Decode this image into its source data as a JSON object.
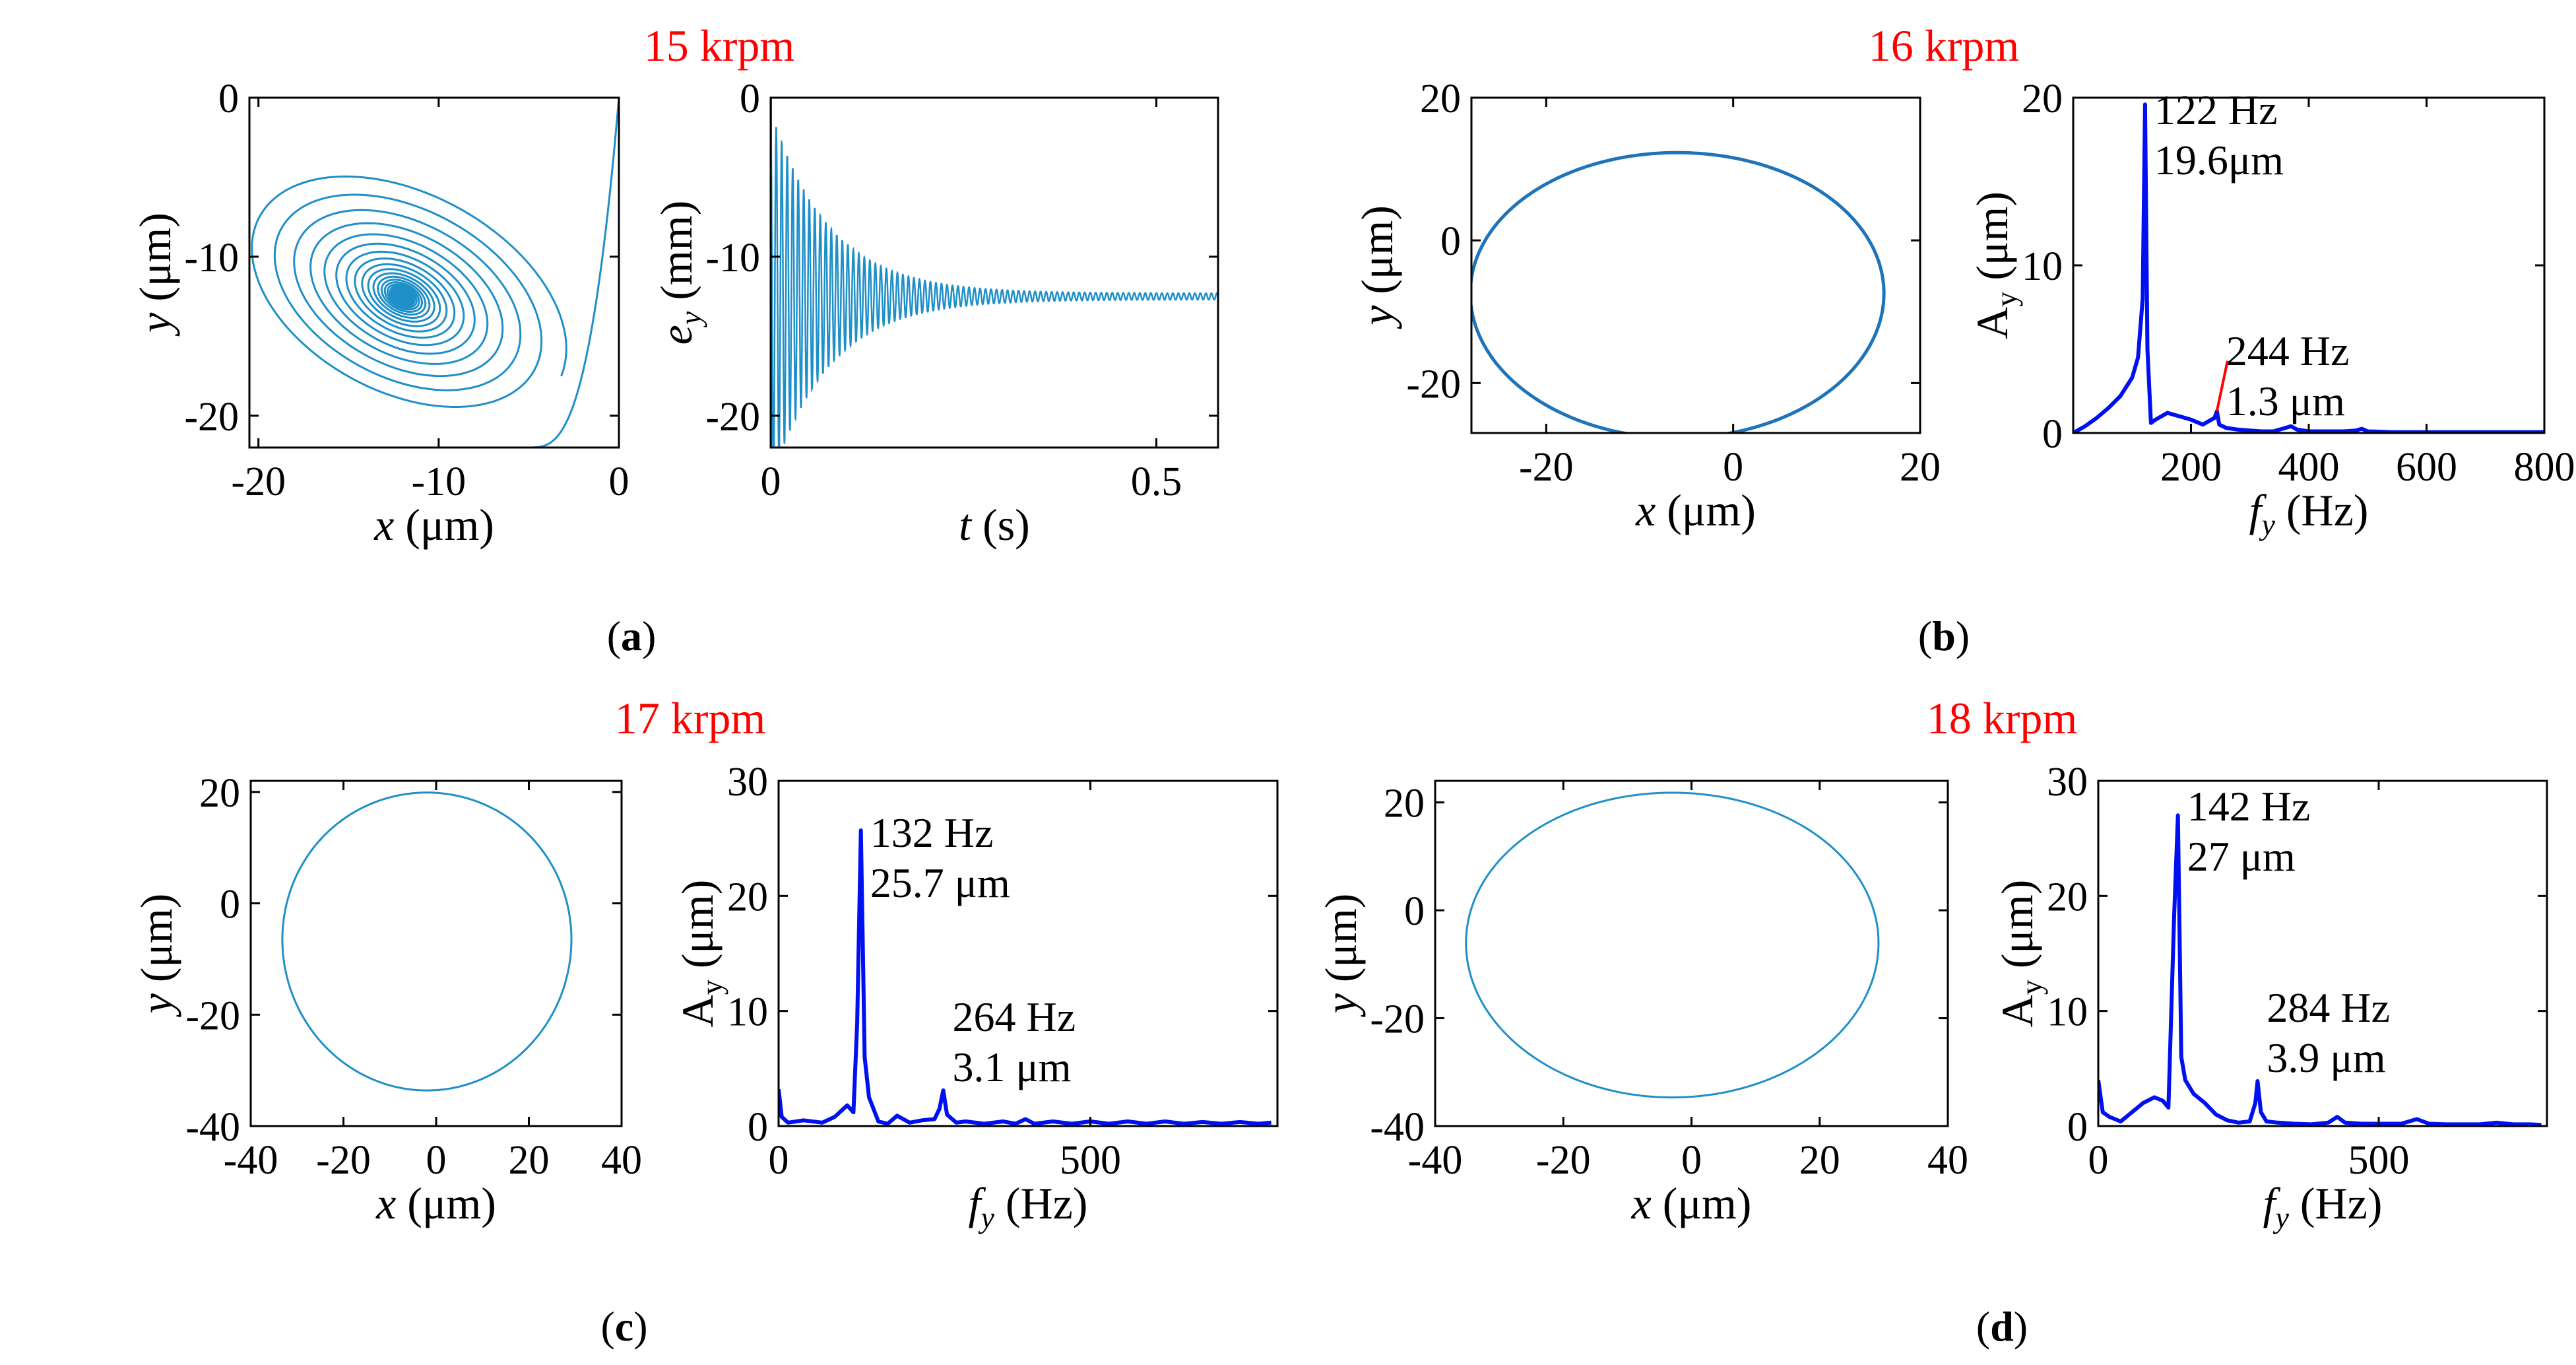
{
  "figure": {
    "panels": [
      {
        "id": "a",
        "label": "(a)",
        "title": "15 krpm"
      },
      {
        "id": "b",
        "label": "(b)",
        "title": "16 krpm"
      },
      {
        "id": "c",
        "label": "(c)",
        "title": "17 krpm"
      },
      {
        "id": "d",
        "label": "(d)",
        "title": "18 krpm"
      }
    ]
  },
  "chart_data": [
    {
      "id": "a-orbit",
      "type": "line",
      "panel": "a",
      "description_series": "converging spiral orbit from (0,0) to center near (-12,-12.5)",
      "start": [
        0,
        0
      ],
      "center": [
        -12,
        -12.5
      ],
      "xlabel": {
        "italic": "x",
        "rest": " (μm)"
      },
      "ylabel": {
        "italic": "y",
        "rest": " (μm)"
      },
      "xlim": [
        -20.5,
        0
      ],
      "ylim": [
        -22,
        0
      ],
      "xticks": [
        -20,
        -10,
        0
      ],
      "yticks": [
        -20,
        -10,
        0
      ],
      "color": "#1f8fc8"
    },
    {
      "id": "a-time",
      "type": "line",
      "panel": "a",
      "description_series": "decaying oscillation of e_y from 0/-22 envelope to steady -12.5",
      "steady_value": -12.5,
      "envelope_start": [
        0,
        -22
      ],
      "xlabel": {
        "italic": "t",
        "rest": " (s)"
      },
      "ylabel": {
        "italic": "e",
        "sub": "y",
        "rest": " (mm)"
      },
      "xlim": [
        0,
        0.58
      ],
      "ylim": [
        -22,
        0
      ],
      "xticks": [
        0,
        0.5
      ],
      "yticks": [
        -20,
        -10,
        0
      ],
      "xticklabels": [
        "0",
        "0.5"
      ],
      "color": "#1f8fc8"
    },
    {
      "id": "b-orbit",
      "type": "line",
      "panel": "b",
      "orbit": {
        "x_range": [
          -28,
          16
        ],
        "y_range": [
          -26.5,
          13.5
        ]
      },
      "xlabel": {
        "italic": "x",
        "rest": " (μm)"
      },
      "ylabel": {
        "italic": "y",
        "rest": " (μm)"
      },
      "xlim": [
        -28,
        20
      ],
      "ylim": [
        -27,
        20
      ],
      "xticks": [
        -20,
        0,
        20
      ],
      "yticks": [
        -20,
        0,
        20
      ],
      "color": "#1f73b8"
    },
    {
      "id": "b-spectrum",
      "type": "line",
      "panel": "b",
      "peaks": [
        {
          "f": 122,
          "A": 19.6
        },
        {
          "f": 244,
          "A": 1.3
        }
      ],
      "x": [
        0,
        20,
        40,
        60,
        80,
        100,
        110,
        118,
        122,
        126,
        132,
        140,
        160,
        180,
        200,
        220,
        240,
        244,
        248,
        260,
        280,
        300,
        320,
        340,
        360,
        370,
        380,
        400,
        420,
        440,
        460,
        480,
        490,
        500,
        520,
        540,
        560,
        580,
        600,
        650,
        700,
        750,
        800
      ],
      "y": [
        0,
        0.4,
        0.9,
        1.5,
        2.2,
        3.3,
        4.5,
        8,
        19.6,
        5,
        0.6,
        0.8,
        1.2,
        1.0,
        0.8,
        0.5,
        0.9,
        1.3,
        0.5,
        0.3,
        0.2,
        0.15,
        0.1,
        0.1,
        0.3,
        0.4,
        0.2,
        0.1,
        0.1,
        0.1,
        0.1,
        0.15,
        0.25,
        0.1,
        0.08,
        0.05,
        0.05,
        0.05,
        0.05,
        0.05,
        0.05,
        0.05,
        0.05
      ],
      "annotations": [
        {
          "lines": [
            "122 Hz",
            "19.6μm"
          ]
        },
        {
          "lines": [
            "244 Hz",
            "1.3 μm"
          ]
        }
      ],
      "xlabel": {
        "italic": "f",
        "sub": "y",
        "rest": " (Hz)"
      },
      "ylabel": {
        "main": "A",
        "sub": "y",
        "rest": " (μm)"
      },
      "xlim": [
        0,
        800
      ],
      "ylim": [
        0,
        20
      ],
      "xticks": [
        200,
        400,
        600,
        800
      ],
      "yticks": [
        0,
        10,
        20
      ],
      "color": "#0010f0"
    },
    {
      "id": "c-orbit",
      "type": "line",
      "panel": "c",
      "orbit": {
        "x_range": [
          -33,
          29
        ],
        "y_range": [
          -32,
          21.5
        ]
      },
      "xlabel": {
        "italic": "x",
        "rest": " (μm)"
      },
      "ylabel": {
        "italic": "y",
        "rest": " (μm)"
      },
      "xlim": [
        -40,
        40
      ],
      "ylim": [
        -40,
        22
      ],
      "xticks": [
        -40,
        -20,
        0,
        20,
        40
      ],
      "yticks": [
        -40,
        -20,
        0,
        20
      ],
      "color": "#1f8fc8"
    },
    {
      "id": "c-spectrum",
      "type": "line",
      "panel": "c",
      "peaks": [
        {
          "f": 132,
          "A": 25.7
        },
        {
          "f": 264,
          "A": 3.1
        }
      ],
      "x": [
        0,
        5,
        15,
        40,
        70,
        90,
        110,
        120,
        126,
        132,
        138,
        145,
        160,
        175,
        190,
        210,
        230,
        250,
        258,
        264,
        270,
        285,
        300,
        330,
        360,
        380,
        396,
        410,
        440,
        470,
        500,
        530,
        560,
        590,
        620,
        650,
        680,
        710,
        740,
        770,
        790
      ],
      "y": [
        3.2,
        0.8,
        0.3,
        0.5,
        0.3,
        0.8,
        1.8,
        1.2,
        9,
        25.7,
        6,
        2.5,
        0.4,
        0.2,
        0.9,
        0.3,
        0.5,
        0.6,
        1.5,
        3.1,
        1.0,
        0.3,
        0.4,
        0.2,
        0.4,
        0.2,
        0.6,
        0.2,
        0.4,
        0.2,
        0.4,
        0.2,
        0.4,
        0.2,
        0.4,
        0.2,
        0.35,
        0.2,
        0.35,
        0.2,
        0.3
      ],
      "annotations": [
        {
          "lines": [
            "132 Hz",
            "25.7 μm"
          ]
        },
        {
          "lines": [
            "264 Hz",
            "3.1 μm"
          ]
        }
      ],
      "xlabel": {
        "italic": "f",
        "sub": "y",
        "rest": " (Hz)"
      },
      "ylabel": {
        "main": "A",
        "sub": "y",
        "rest": " (μm)"
      },
      "xlim": [
        0,
        800
      ],
      "ylim": [
        0,
        30
      ],
      "xticks": [
        0,
        500
      ],
      "yticks": [
        0,
        10,
        20,
        30
      ],
      "color": "#0010f0"
    },
    {
      "id": "d-orbit",
      "type": "line",
      "panel": "d",
      "orbit": {
        "x_range": [
          -35,
          29
        ],
        "y_range": [
          -33,
          23.5
        ]
      },
      "xlabel": {
        "italic": "x",
        "rest": " (μm)"
      },
      "ylabel": {
        "italic": "y",
        "rest": " (μm)"
      },
      "xlim": [
        -40,
        40
      ],
      "ylim": [
        -40,
        24
      ],
      "xticks": [
        -40,
        -20,
        0,
        20,
        40
      ],
      "yticks": [
        -40,
        -20,
        0,
        20
      ],
      "color": "#1f8fc8"
    },
    {
      "id": "d-spectrum",
      "type": "line",
      "panel": "d",
      "peaks": [
        {
          "f": 142,
          "A": 27
        },
        {
          "f": 284,
          "A": 3.9
        }
      ],
      "x": [
        0,
        8,
        20,
        40,
        60,
        80,
        100,
        115,
        125,
        135,
        142,
        148,
        155,
        170,
        190,
        210,
        230,
        250,
        270,
        280,
        284,
        290,
        300,
        320,
        350,
        380,
        410,
        426,
        440,
        470,
        500,
        540,
        568,
        590,
        620,
        650,
        680,
        710,
        740,
        770,
        790
      ],
      "y": [
        4.0,
        1.2,
        0.8,
        0.4,
        1.2,
        2.0,
        2.5,
        2.2,
        1.6,
        18,
        27,
        6,
        4,
        2.8,
        2.0,
        1.0,
        0.5,
        0.3,
        0.4,
        2.0,
        3.9,
        1.2,
        0.4,
        0.3,
        0.2,
        0.15,
        0.3,
        0.8,
        0.3,
        0.2,
        0.2,
        0.2,
        0.6,
        0.2,
        0.15,
        0.15,
        0.15,
        0.3,
        0.15,
        0.15,
        0.1
      ],
      "annotations": [
        {
          "lines": [
            "142 Hz",
            "27 μm"
          ]
        },
        {
          "lines": [
            "284 Hz",
            "3.9 μm"
          ]
        }
      ],
      "xlabel": {
        "italic": "f",
        "sub": "y",
        "rest": " (Hz)"
      },
      "ylabel": {
        "main": "A",
        "sub": "y",
        "rest": " (μm)"
      },
      "xlim": [
        0,
        800
      ],
      "ylim": [
        0,
        30
      ],
      "xticks": [
        0,
        500
      ],
      "yticks": [
        0,
        10,
        20,
        30
      ],
      "color": "#0010f0"
    }
  ]
}
